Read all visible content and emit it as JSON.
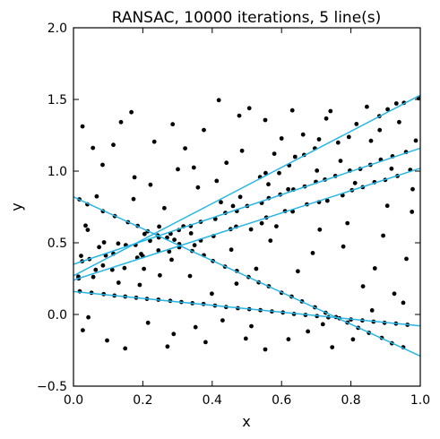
{
  "chart_data": {
    "type": "scatter",
    "title": "RANSAC,  10000 iterations, 5 line(s)",
    "xlabel": "x",
    "ylabel": "y",
    "xlim": [
      0.0,
      1.0
    ],
    "ylim": [
      -0.5,
      2.0
    ],
    "x_ticks": [
      "0.0",
      "0.2",
      "0.4",
      "0.6",
      "0.8",
      "1.0"
    ],
    "y_ticks": [
      "−0.5",
      "0.0",
      "0.5",
      "1.0",
      "1.5",
      "2.0"
    ],
    "grid": false,
    "legend": "none",
    "point_color": "#000000",
    "line_color": "#29b6e6",
    "lines": [
      {
        "x": [
          0.0,
          1.0
        ],
        "y": [
          0.27,
          1.53
        ]
      },
      {
        "x": [
          0.0,
          1.0
        ],
        "y": [
          0.24,
          1.02
        ]
      },
      {
        "x": [
          0.0,
          1.0
        ],
        "y": [
          0.35,
          1.16
        ]
      },
      {
        "x": [
          0.0,
          1.0
        ],
        "y": [
          0.82,
          -0.29
        ]
      },
      {
        "x": [
          0.0,
          1.0
        ],
        "y": [
          0.16,
          -0.08
        ]
      }
    ],
    "points": [
      [
        0.014,
        0.264
      ],
      [
        0.064,
        0.311
      ],
      [
        0.022,
        0.409
      ],
      [
        0.129,
        0.495
      ],
      [
        0.195,
        0.422
      ],
      [
        0.205,
        0.561
      ],
      [
        0.247,
        0.613
      ],
      [
        0.291,
        0.521
      ],
      [
        0.317,
        0.615
      ],
      [
        0.339,
        0.566
      ],
      [
        0.425,
        0.783
      ],
      [
        0.46,
        0.757
      ],
      [
        0.481,
        0.82
      ],
      [
        0.538,
        0.958
      ],
      [
        0.554,
        0.986
      ],
      [
        0.562,
        0.908
      ],
      [
        0.593,
        0.986
      ],
      [
        0.622,
        1.04
      ],
      [
        0.639,
        1.1
      ],
      [
        0.665,
        1.113
      ],
      [
        0.696,
        1.159
      ],
      [
        0.708,
        1.222
      ],
      [
        0.763,
        1.199
      ],
      [
        0.794,
        1.238
      ],
      [
        0.816,
        1.329
      ],
      [
        0.882,
        1.383
      ],
      [
        0.906,
        1.431
      ],
      [
        0.931,
        1.472
      ],
      [
        0.953,
        1.476
      ],
      [
        0.995,
        1.508
      ],
      [
        0.015,
        0.251
      ],
      [
        0.057,
        0.261
      ],
      [
        0.085,
        0.342
      ],
      [
        0.112,
        0.311
      ],
      [
        0.147,
        0.324
      ],
      [
        0.184,
        0.396
      ],
      [
        0.2,
        0.406
      ],
      [
        0.245,
        0.447
      ],
      [
        0.276,
        0.439
      ],
      [
        0.305,
        0.469
      ],
      [
        0.349,
        0.483
      ],
      [
        0.367,
        0.516
      ],
      [
        0.404,
        0.547
      ],
      [
        0.453,
        0.595
      ],
      [
        0.469,
        0.613
      ],
      [
        0.512,
        0.594
      ],
      [
        0.543,
        0.636
      ],
      [
        0.556,
        0.676
      ],
      [
        0.61,
        0.721
      ],
      [
        0.632,
        0.718
      ],
      [
        0.673,
        0.768
      ],
      [
        0.708,
        0.784
      ],
      [
        0.732,
        0.793
      ],
      [
        0.776,
        0.831
      ],
      [
        0.803,
        0.867
      ],
      [
        0.834,
        0.888
      ],
      [
        0.868,
        0.923
      ],
      [
        0.899,
        0.939
      ],
      [
        0.934,
        0.966
      ],
      [
        0.971,
        1.009
      ],
      [
        0.025,
        0.371
      ],
      [
        0.046,
        0.386
      ],
      [
        0.093,
        0.411
      ],
      [
        0.115,
        0.424
      ],
      [
        0.151,
        0.484
      ],
      [
        0.179,
        0.485
      ],
      [
        0.221,
        0.514
      ],
      [
        0.246,
        0.537
      ],
      [
        0.28,
        0.563
      ],
      [
        0.304,
        0.589
      ],
      [
        0.338,
        0.617
      ],
      [
        0.367,
        0.646
      ],
      [
        0.409,
        0.666
      ],
      [
        0.438,
        0.709
      ],
      [
        0.471,
        0.721
      ],
      [
        0.501,
        0.757
      ],
      [
        0.543,
        0.778
      ],
      [
        0.563,
        0.812
      ],
      [
        0.596,
        0.836
      ],
      [
        0.634,
        0.872
      ],
      [
        0.667,
        0.893
      ],
      [
        0.699,
        0.925
      ],
      [
        0.725,
        0.941
      ],
      [
        0.755,
        0.966
      ],
      [
        0.797,
        1.004
      ],
      [
        0.827,
        1.015
      ],
      [
        0.856,
        1.044
      ],
      [
        0.886,
        1.08
      ],
      [
        0.92,
        1.104
      ],
      [
        0.959,
        1.133
      ],
      [
        0.017,
        0.803
      ],
      [
        0.04,
        0.768
      ],
      [
        0.085,
        0.72
      ],
      [
        0.119,
        0.686
      ],
      [
        0.157,
        0.644
      ],
      [
        0.185,
        0.618
      ],
      [
        0.214,
        0.58
      ],
      [
        0.243,
        0.551
      ],
      [
        0.27,
        0.536
      ],
      [
        0.305,
        0.491
      ],
      [
        0.342,
        0.443
      ],
      [
        0.376,
        0.413
      ],
      [
        0.402,
        0.373
      ],
      [
        0.437,
        0.334
      ],
      [
        0.471,
        0.304
      ],
      [
        0.505,
        0.261
      ],
      [
        0.534,
        0.224
      ],
      [
        0.563,
        0.197
      ],
      [
        0.6,
        0.151
      ],
      [
        0.629,
        0.125
      ],
      [
        0.659,
        0.091
      ],
      [
        0.696,
        0.05
      ],
      [
        0.727,
        0.012
      ],
      [
        0.757,
        -0.018
      ],
      [
        0.79,
        -0.056
      ],
      [
        0.821,
        -0.093
      ],
      [
        0.852,
        -0.128
      ],
      [
        0.889,
        -0.163
      ],
      [
        0.918,
        -0.201
      ],
      [
        0.951,
        -0.229
      ],
      [
        0.018,
        0.161
      ],
      [
        0.052,
        0.151
      ],
      [
        0.087,
        0.142
      ],
      [
        0.118,
        0.132
      ],
      [
        0.149,
        0.125
      ],
      [
        0.181,
        0.117
      ],
      [
        0.212,
        0.109
      ],
      [
        0.245,
        0.103
      ],
      [
        0.279,
        0.095
      ],
      [
        0.311,
        0.087
      ],
      [
        0.343,
        0.079
      ],
      [
        0.375,
        0.073
      ],
      [
        0.408,
        0.062
      ],
      [
        0.44,
        0.052
      ],
      [
        0.474,
        0.044
      ],
      [
        0.507,
        0.037
      ],
      [
        0.539,
        0.03
      ],
      [
        0.572,
        0.021
      ],
      [
        0.604,
        0.014
      ],
      [
        0.636,
        0.004
      ],
      [
        0.669,
        -0.003
      ],
      [
        0.702,
        -0.011
      ],
      [
        0.735,
        -0.02
      ],
      [
        0.767,
        -0.027
      ],
      [
        0.8,
        -0.035
      ],
      [
        0.833,
        -0.042
      ],
      [
        0.865,
        -0.05
      ],
      [
        0.897,
        -0.058
      ],
      [
        0.93,
        -0.064
      ],
      [
        0.963,
        -0.072
      ],
      [
        0.026,
        1.312
      ],
      [
        0.084,
        1.044
      ],
      [
        0.167,
        1.411
      ],
      [
        0.173,
        0.805
      ],
      [
        0.322,
        1.159
      ],
      [
        0.419,
        1.495
      ],
      [
        0.478,
        1.387
      ],
      [
        0.6,
        1.228
      ],
      [
        0.631,
        1.424
      ],
      [
        0.729,
        1.367
      ],
      [
        0.858,
        1.211
      ],
      [
        0.905,
        0.758
      ],
      [
        0.027,
        -0.11
      ],
      [
        0.149,
        -0.237
      ],
      [
        0.289,
        -0.136
      ],
      [
        0.381,
        -0.193
      ],
      [
        0.513,
        -0.082
      ],
      [
        0.62,
        -0.173
      ],
      [
        0.746,
        -0.229
      ],
      [
        0.869,
        0.322
      ],
      [
        0.925,
        0.145
      ],
      [
        0.041,
        0.59
      ],
      [
        0.176,
        0.957
      ],
      [
        0.249,
        0.273
      ],
      [
        0.359,
        0.886
      ],
      [
        0.47,
        0.215
      ],
      [
        0.568,
        0.515
      ],
      [
        0.69,
        0.429
      ],
      [
        0.79,
        0.637
      ],
      [
        0.96,
        0.388
      ],
      [
        0.035,
        0.62
      ],
      [
        0.088,
        0.503
      ],
      [
        0.13,
        0.222
      ],
      [
        0.203,
        0.318
      ],
      [
        0.262,
        0.742
      ],
      [
        0.336,
        0.268
      ],
      [
        0.399,
        0.145
      ],
      [
        0.455,
        0.452
      ],
      [
        0.527,
        0.319
      ],
      [
        0.585,
        0.615
      ],
      [
        0.647,
        0.301
      ],
      [
        0.71,
        0.592
      ],
      [
        0.778,
        0.474
      ],
      [
        0.835,
        0.196
      ],
      [
        0.893,
        0.55
      ],
      [
        0.976,
        0.716
      ],
      [
        0.056,
        1.162
      ],
      [
        0.137,
        1.342
      ],
      [
        0.233,
        1.205
      ],
      [
        0.301,
        1.013
      ],
      [
        0.376,
        1.287
      ],
      [
        0.441,
        1.058
      ],
      [
        0.507,
        1.439
      ],
      [
        0.579,
        1.121
      ],
      [
        0.662,
        1.255
      ],
      [
        0.741,
        1.419
      ],
      [
        0.812,
        0.917
      ],
      [
        0.883,
        1.286
      ],
      [
        0.939,
        1.342
      ],
      [
        0.978,
        0.874
      ],
      [
        0.043,
        -0.02
      ],
      [
        0.097,
        -0.181
      ],
      [
        0.215,
        -0.058
      ],
      [
        0.271,
        -0.224
      ],
      [
        0.352,
        -0.089
      ],
      [
        0.43,
        -0.041
      ],
      [
        0.497,
        -0.168
      ],
      [
        0.553,
        -0.244
      ],
      [
        0.676,
        -0.118
      ],
      [
        0.719,
        -0.068
      ],
      [
        0.806,
        -0.174
      ],
      [
        0.861,
        0.029
      ],
      [
        0.951,
        0.082
      ],
      [
        0.067,
        0.824
      ],
      [
        0.115,
        1.183
      ],
      [
        0.222,
        0.905
      ],
      [
        0.286,
        1.327
      ],
      [
        0.347,
        1.025
      ],
      [
        0.413,
        0.932
      ],
      [
        0.486,
        1.142
      ],
      [
        0.553,
        1.356
      ],
      [
        0.619,
        0.873
      ],
      [
        0.702,
        1.004
      ],
      [
        0.77,
        1.071
      ],
      [
        0.846,
        1.449
      ],
      [
        0.917,
        1.017
      ],
      [
        0.987,
        1.213
      ],
      [
        0.074,
        0.47
      ],
      [
        0.191,
        0.206
      ],
      [
        0.283,
        0.382
      ]
    ]
  }
}
